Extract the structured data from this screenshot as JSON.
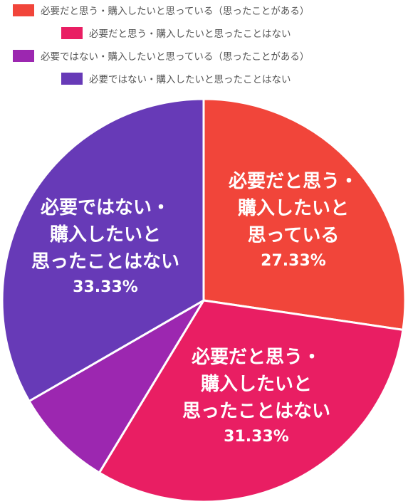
{
  "chart_data": {
    "type": "pie",
    "legend": [
      {
        "label": "必要だと思う・購入したいと思っている（思ったことがある）",
        "color": "#f1453a"
      },
      {
        "label": "必要だと思う・購入したいと思ったことはない",
        "color": "#e91e63"
      },
      {
        "label": "必要ではない・購入したいと思っている（思ったことがある）",
        "color": "#9c27b0"
      },
      {
        "label": "必要ではない・購入したいと思ったことはない",
        "color": "#673ab7"
      }
    ],
    "slices": [
      {
        "value": 27.33,
        "color": "#f1453a",
        "label_lines": [
          "必要だと思う・",
          "購入したいと",
          "思っている"
        ],
        "value_label": "27.33%"
      },
      {
        "value": 31.33,
        "color": "#e91e63",
        "label_lines": [
          "必要だと思う・",
          "購入したいと",
          "思ったことはない"
        ],
        "value_label": "31.33%"
      },
      {
        "value": 8.0,
        "color": "#9c27b0",
        "label_lines": [],
        "value_label": ""
      },
      {
        "value": 33.33,
        "color": "#673ab7",
        "label_lines": [
          "必要ではない・",
          "購入したいと",
          "思ったことはない"
        ],
        "value_label": "33.33%"
      }
    ],
    "legend_position": "top",
    "start_angle_deg": 0,
    "direction": "clockwise"
  }
}
